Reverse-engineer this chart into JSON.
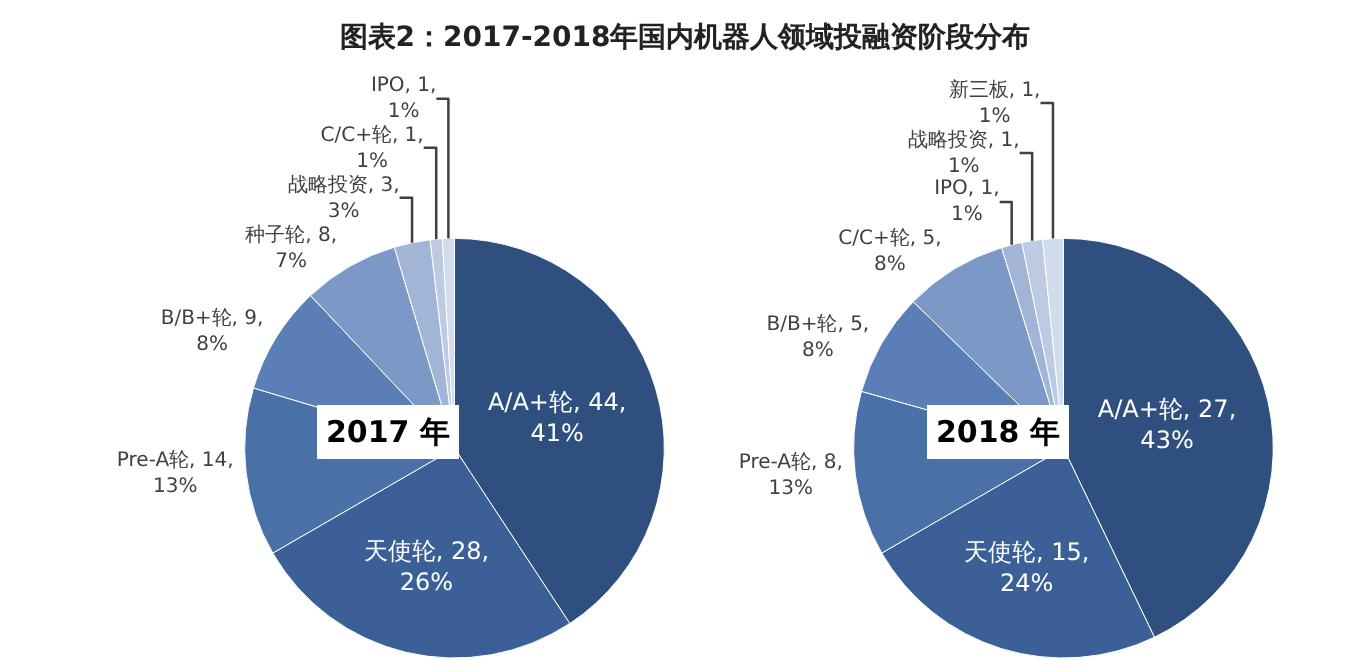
{
  "chart_data": [
    {
      "type": "pie",
      "title": "图表2：2017-2018年国内机器人领域投融资阶段分布",
      "annotations": [
        "2017 年"
      ],
      "categories": [
        "A/A+轮",
        "天使轮",
        "Pre-A轮",
        "B/B+轮",
        "种子轮",
        "战略投资",
        "C/C+轮",
        "IPO"
      ],
      "values": [
        44,
        28,
        14,
        9,
        8,
        3,
        1,
        1
      ],
      "value_labels": [
        "44, 41%",
        "28, 26%",
        "14, 13%",
        "9, 8%",
        "8, 7%",
        "3, 3%",
        "1, 1%",
        "1, 1%"
      ],
      "colors": [
        "#2f4f7f",
        "#3b6097",
        "#4a70a8",
        "#5a7fb6",
        "#7b98c6",
        "#a2b5d7",
        "#bccae2",
        "#d3dcec"
      ],
      "legend": false
    },
    {
      "type": "pie",
      "annotations": [
        "2018 年"
      ],
      "categories": [
        "A/A+轮",
        "天使轮",
        "Pre-A轮",
        "B/B+轮",
        "C/C+轮",
        "IPO",
        "战略投资",
        "新三板"
      ],
      "values": [
        27,
        15,
        8,
        5,
        5,
        1,
        1,
        1
      ],
      "value_labels": [
        "27, 43%",
        "15, 24%",
        "8, 13%",
        "5, 8%",
        "5, 8%",
        "1, 1%",
        "1, 1%",
        "1, 1%"
      ],
      "colors": [
        "#2f4f7f",
        "#3b6097",
        "#4a70a8",
        "#5a7fb6",
        "#7b98c6",
        "#a2b5d7",
        "#bccae2",
        "#d3dcec"
      ],
      "legend": false
    }
  ]
}
